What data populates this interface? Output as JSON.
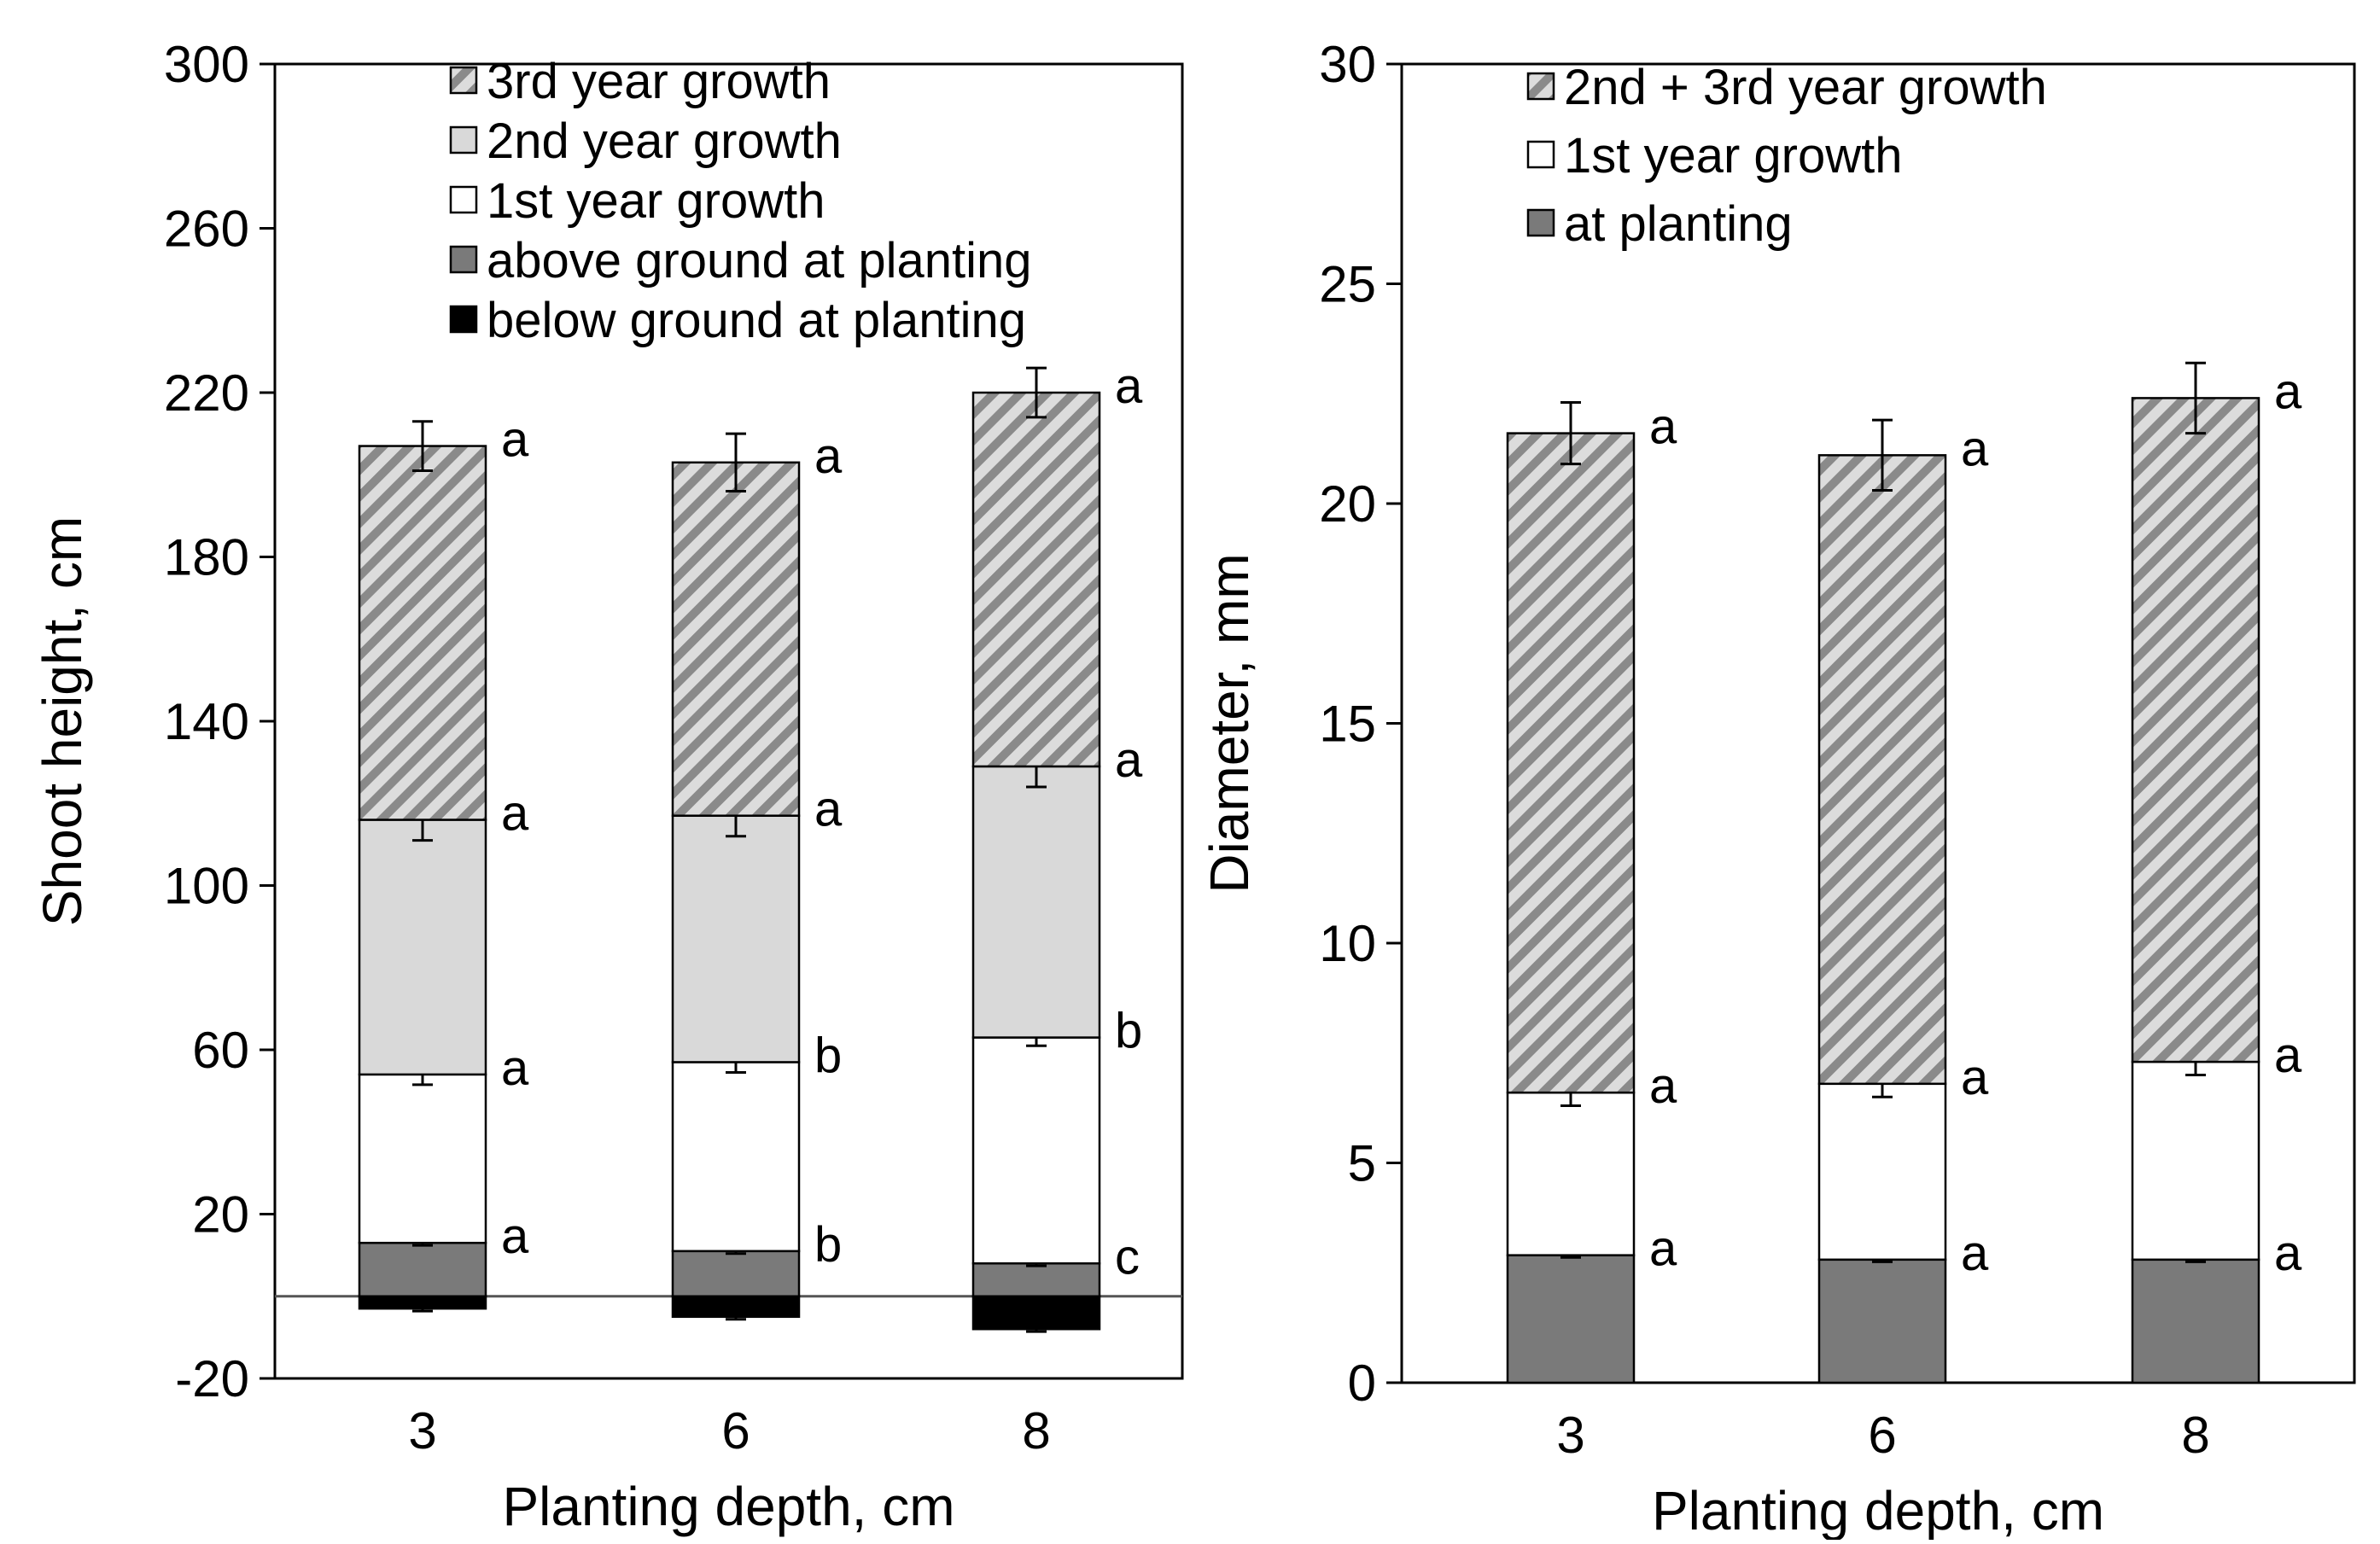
{
  "colors": {
    "hatch_stripe": "#8a8a8a",
    "hatch_background": "#dcdcdc",
    "second_year": "#d9d9d9",
    "first_year": "#ffffff",
    "above_ground": "#7a7a7a",
    "below_ground": "#000000",
    "at_planting": "#7a7a7a"
  },
  "chart_data": [
    {
      "type": "bar",
      "stacked": true,
      "panel": "left",
      "xlabel": "Planting depth, cm",
      "ylabel": "Shoot height, cm",
      "ylim": [
        -20,
        300
      ],
      "yticks": [
        "-20",
        "20",
        "60",
        "100",
        "140",
        "180",
        "220",
        "260",
        "300"
      ],
      "categories": [
        "3",
        "6",
        "8"
      ],
      "legend_position": "top",
      "series": [
        {
          "key": "below",
          "name": "below ground at planting",
          "style": "below_ground",
          "values": [
            -3,
            -5,
            -8
          ],
          "errors": [
            0.6,
            0.6,
            0.6
          ],
          "letters": [
            "",
            "",
            ""
          ]
        },
        {
          "key": "above",
          "name": "above ground at planting",
          "style": "above_ground",
          "values": [
            13,
            11,
            8
          ],
          "errors": [
            0.6,
            0.6,
            0.6
          ],
          "letters": [
            "a",
            "b",
            "c"
          ]
        },
        {
          "key": "y1",
          "name": "1st year growth",
          "style": "first_year",
          "values": [
            41,
            46,
            55
          ],
          "errors": [
            2.5,
            2.5,
            2
          ],
          "letters": [
            "a",
            "b",
            "b"
          ]
        },
        {
          "key": "y2",
          "name": "2nd year growth",
          "style": "second_year",
          "values": [
            62,
            60,
            66
          ],
          "errors": [
            5,
            5,
            5
          ],
          "letters": [
            "a",
            "a",
            "a"
          ]
        },
        {
          "key": "y3",
          "name": "3rd year growth",
          "style": "hatch",
          "values": [
            91,
            86,
            91
          ],
          "errors": [
            6,
            7,
            6
          ],
          "letters": [
            "a",
            "a",
            "a"
          ]
        }
      ],
      "legend": [
        {
          "label": "3rd year growth",
          "style": "hatch"
        },
        {
          "label": "2nd year growth",
          "style": "second_year"
        },
        {
          "label": "1st year growth",
          "style": "first_year"
        },
        {
          "label": "above ground at planting",
          "style": "above_ground"
        },
        {
          "label": "below ground at planting",
          "style": "below_ground"
        }
      ]
    },
    {
      "type": "bar",
      "stacked": true,
      "panel": "right",
      "xlabel": "Planting depth, cm",
      "ylabel": "Diameter, mm",
      "ylim": [
        0,
        30
      ],
      "yticks": [
        "0",
        "5",
        "10",
        "15",
        "20",
        "25",
        "30"
      ],
      "categories": [
        "3",
        "6",
        "8"
      ],
      "legend_position": "top",
      "series": [
        {
          "key": "plant",
          "name": "at planting",
          "style": "at_planting",
          "values": [
            2.9,
            2.8,
            2.8
          ],
          "errors": [
            0.05,
            0.05,
            0.05
          ],
          "letters": [
            "a",
            "a",
            "a"
          ]
        },
        {
          "key": "y1",
          "name": "1st year growth",
          "style": "first_year",
          "values": [
            3.7,
            4.0,
            4.5
          ],
          "errors": [
            0.3,
            0.3,
            0.3
          ],
          "letters": [
            "a",
            "a",
            "a"
          ]
        },
        {
          "key": "y23",
          "name": "2nd + 3rd year growth",
          "style": "hatch",
          "values": [
            15.0,
            14.3,
            15.1
          ],
          "errors": [
            0.7,
            0.8,
            0.8
          ],
          "letters": [
            "a",
            "a",
            "a"
          ]
        }
      ],
      "legend": [
        {
          "label": "2nd + 3rd year growth",
          "style": "hatch"
        },
        {
          "label": "1st year growth",
          "style": "first_year"
        },
        {
          "label": "at planting",
          "style": "at_planting"
        }
      ]
    }
  ]
}
